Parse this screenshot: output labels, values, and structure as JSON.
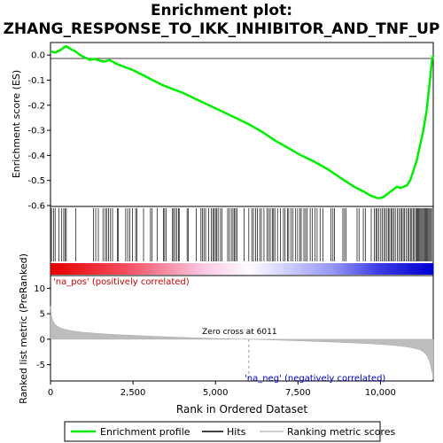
{
  "title_line1": "Enrichment plot:",
  "title_line2": "ZHANG_RESPONSE_TO_IKK_INHIBITOR_AND_TNF_UP",
  "es_panel": {
    "ylabel": "Enrichment score (ES)",
    "yticks": [
      "0.0",
      "-0.1",
      "-0.2",
      "-0.3",
      "-0.4",
      "-0.5",
      "-0.6"
    ]
  },
  "rank_panel": {
    "ylabel": "Ranked list metric (PreRanked)",
    "yticks": [
      "10",
      "5",
      "0",
      "-5"
    ],
    "xticks": [
      "0",
      "2,500",
      "5,000",
      "7,500",
      "10,000"
    ],
    "xlabel": "Rank in Ordered Dataset",
    "zero_cross_label": "Zero cross at 6011",
    "pos_label": "'na_pos' (positively correlated)",
    "neg_label": "'na_neg' (negatively correlated)"
  },
  "legend": {
    "items": [
      {
        "label": "Enrichment profile",
        "color": "#00ff00"
      },
      {
        "label": "Hits",
        "color": "#000000"
      },
      {
        "label": "Ranking metric scores",
        "color": "#c0c0c0"
      }
    ]
  },
  "chart_data": {
    "type": "line",
    "x_range": [
      0,
      11600
    ],
    "es_ylim": [
      -0.6,
      0.05
    ],
    "metric_ylim": [
      -8,
      12
    ],
    "zero_cross": 6011,
    "es_profile": {
      "x": [
        0,
        150,
        300,
        400,
        480,
        600,
        750,
        900,
        1050,
        1200,
        1300,
        1450,
        1550,
        1650,
        1800,
        2000,
        2200,
        2500,
        2800,
        3100,
        3400,
        3700,
        4000,
        4400,
        4800,
        5200,
        5600,
        6000,
        6400,
        6800,
        7200,
        7600,
        8000,
        8400,
        8800,
        9200,
        9500,
        9700,
        9800,
        9900,
        10000,
        10100,
        10200,
        10300,
        10400,
        10500,
        10600,
        10700,
        10800,
        10900,
        11000,
        11100,
        11200,
        11300,
        11400,
        11450,
        11500,
        11530,
        11560,
        11600
      ],
      "y": [
        0.015,
        0.01,
        0.02,
        0.03,
        0.035,
        0.025,
        0.015,
        0.0,
        -0.01,
        -0.02,
        -0.015,
        -0.02,
        -0.025,
        -0.025,
        -0.02,
        -0.035,
        -0.045,
        -0.06,
        -0.08,
        -0.1,
        -0.12,
        -0.135,
        -0.15,
        -0.175,
        -0.2,
        -0.225,
        -0.25,
        -0.275,
        -0.305,
        -0.34,
        -0.37,
        -0.4,
        -0.425,
        -0.455,
        -0.49,
        -0.525,
        -0.545,
        -0.56,
        -0.565,
        -0.57,
        -0.57,
        -0.565,
        -0.555,
        -0.545,
        -0.535,
        -0.525,
        -0.53,
        -0.525,
        -0.52,
        -0.5,
        -0.46,
        -0.42,
        -0.36,
        -0.3,
        -0.22,
        -0.16,
        -0.1,
        -0.06,
        -0.02,
        0.0
      ]
    },
    "hits": [
      30,
      90,
      140,
      250,
      330,
      400,
      440,
      480,
      770,
      1300,
      1370,
      1450,
      1590,
      1660,
      1700,
      1760,
      1820,
      1880,
      2030,
      2060,
      2280,
      2340,
      2400,
      2480,
      2580,
      2620,
      2820,
      3030,
      3080,
      3230,
      3420,
      3460,
      3510,
      3700,
      3730,
      3780,
      3830,
      3880,
      3900,
      4140,
      4180,
      4420,
      4560,
      4600,
      4650,
      4700,
      4790,
      4870,
      4920,
      4960,
      5000,
      5040,
      5080,
      5150,
      5200,
      5370,
      5420,
      5480,
      5530,
      5570,
      5610,
      5650,
      5870,
      6010,
      6100,
      6150,
      6220,
      6270,
      6340,
      6390,
      6470,
      6560,
      6610,
      6660,
      6720,
      6760,
      6800,
      6880,
      6970,
      7060,
      7110,
      7180,
      7220,
      7290,
      7350,
      7430,
      7490,
      7560,
      7600,
      7680,
      7730,
      7780,
      7870,
      7930,
      8020,
      8080,
      8170,
      8260,
      8500,
      8560,
      8610,
      8860,
      8910,
      8960,
      9290,
      9350,
      9480,
      9540,
      9720,
      9810,
      9860,
      9900,
      9950,
      10010,
      10060,
      10110,
      10150,
      10200,
      10240,
      10280,
      10330,
      10360,
      10400,
      10450,
      10510,
      10560,
      10610,
      10650,
      10690,
      10730,
      10780,
      10830,
      10870,
      10910,
      10950,
      10990,
      11030,
      11070,
      11100,
      11130,
      11160,
      11190,
      11220,
      11250,
      11280,
      11310,
      11340,
      11370,
      11400,
      11430,
      11460,
      11490,
      11520,
      11550
    ],
    "metric_profile": {
      "x": [
        0,
        25,
        60,
        120,
        200,
        300,
        450,
        700,
        1000,
        1500,
        2000,
        2500,
        3000,
        3500,
        4000,
        4500,
        5000,
        5500,
        6011,
        6500,
        7000,
        7500,
        8000,
        8500,
        9000,
        9500,
        10000,
        10400,
        10800,
        11000,
        11200,
        11300,
        11380,
        11440,
        11480,
        11520,
        11560,
        11590,
        11600
      ],
      "y": [
        6.5,
        4.8,
        3.8,
        3.1,
        2.6,
        2.2,
        1.9,
        1.6,
        1.35,
        1.1,
        0.9,
        0.75,
        0.6,
        0.48,
        0.36,
        0.25,
        0.15,
        0.07,
        0.0,
        -0.1,
        -0.2,
        -0.3,
        -0.42,
        -0.55,
        -0.68,
        -0.82,
        -1.0,
        -1.2,
        -1.5,
        -1.75,
        -2.1,
        -2.5,
        -3.0,
        -3.6,
        -4.3,
        -5.2,
        -6.3,
        -7.4,
        -7.8
      ]
    }
  }
}
